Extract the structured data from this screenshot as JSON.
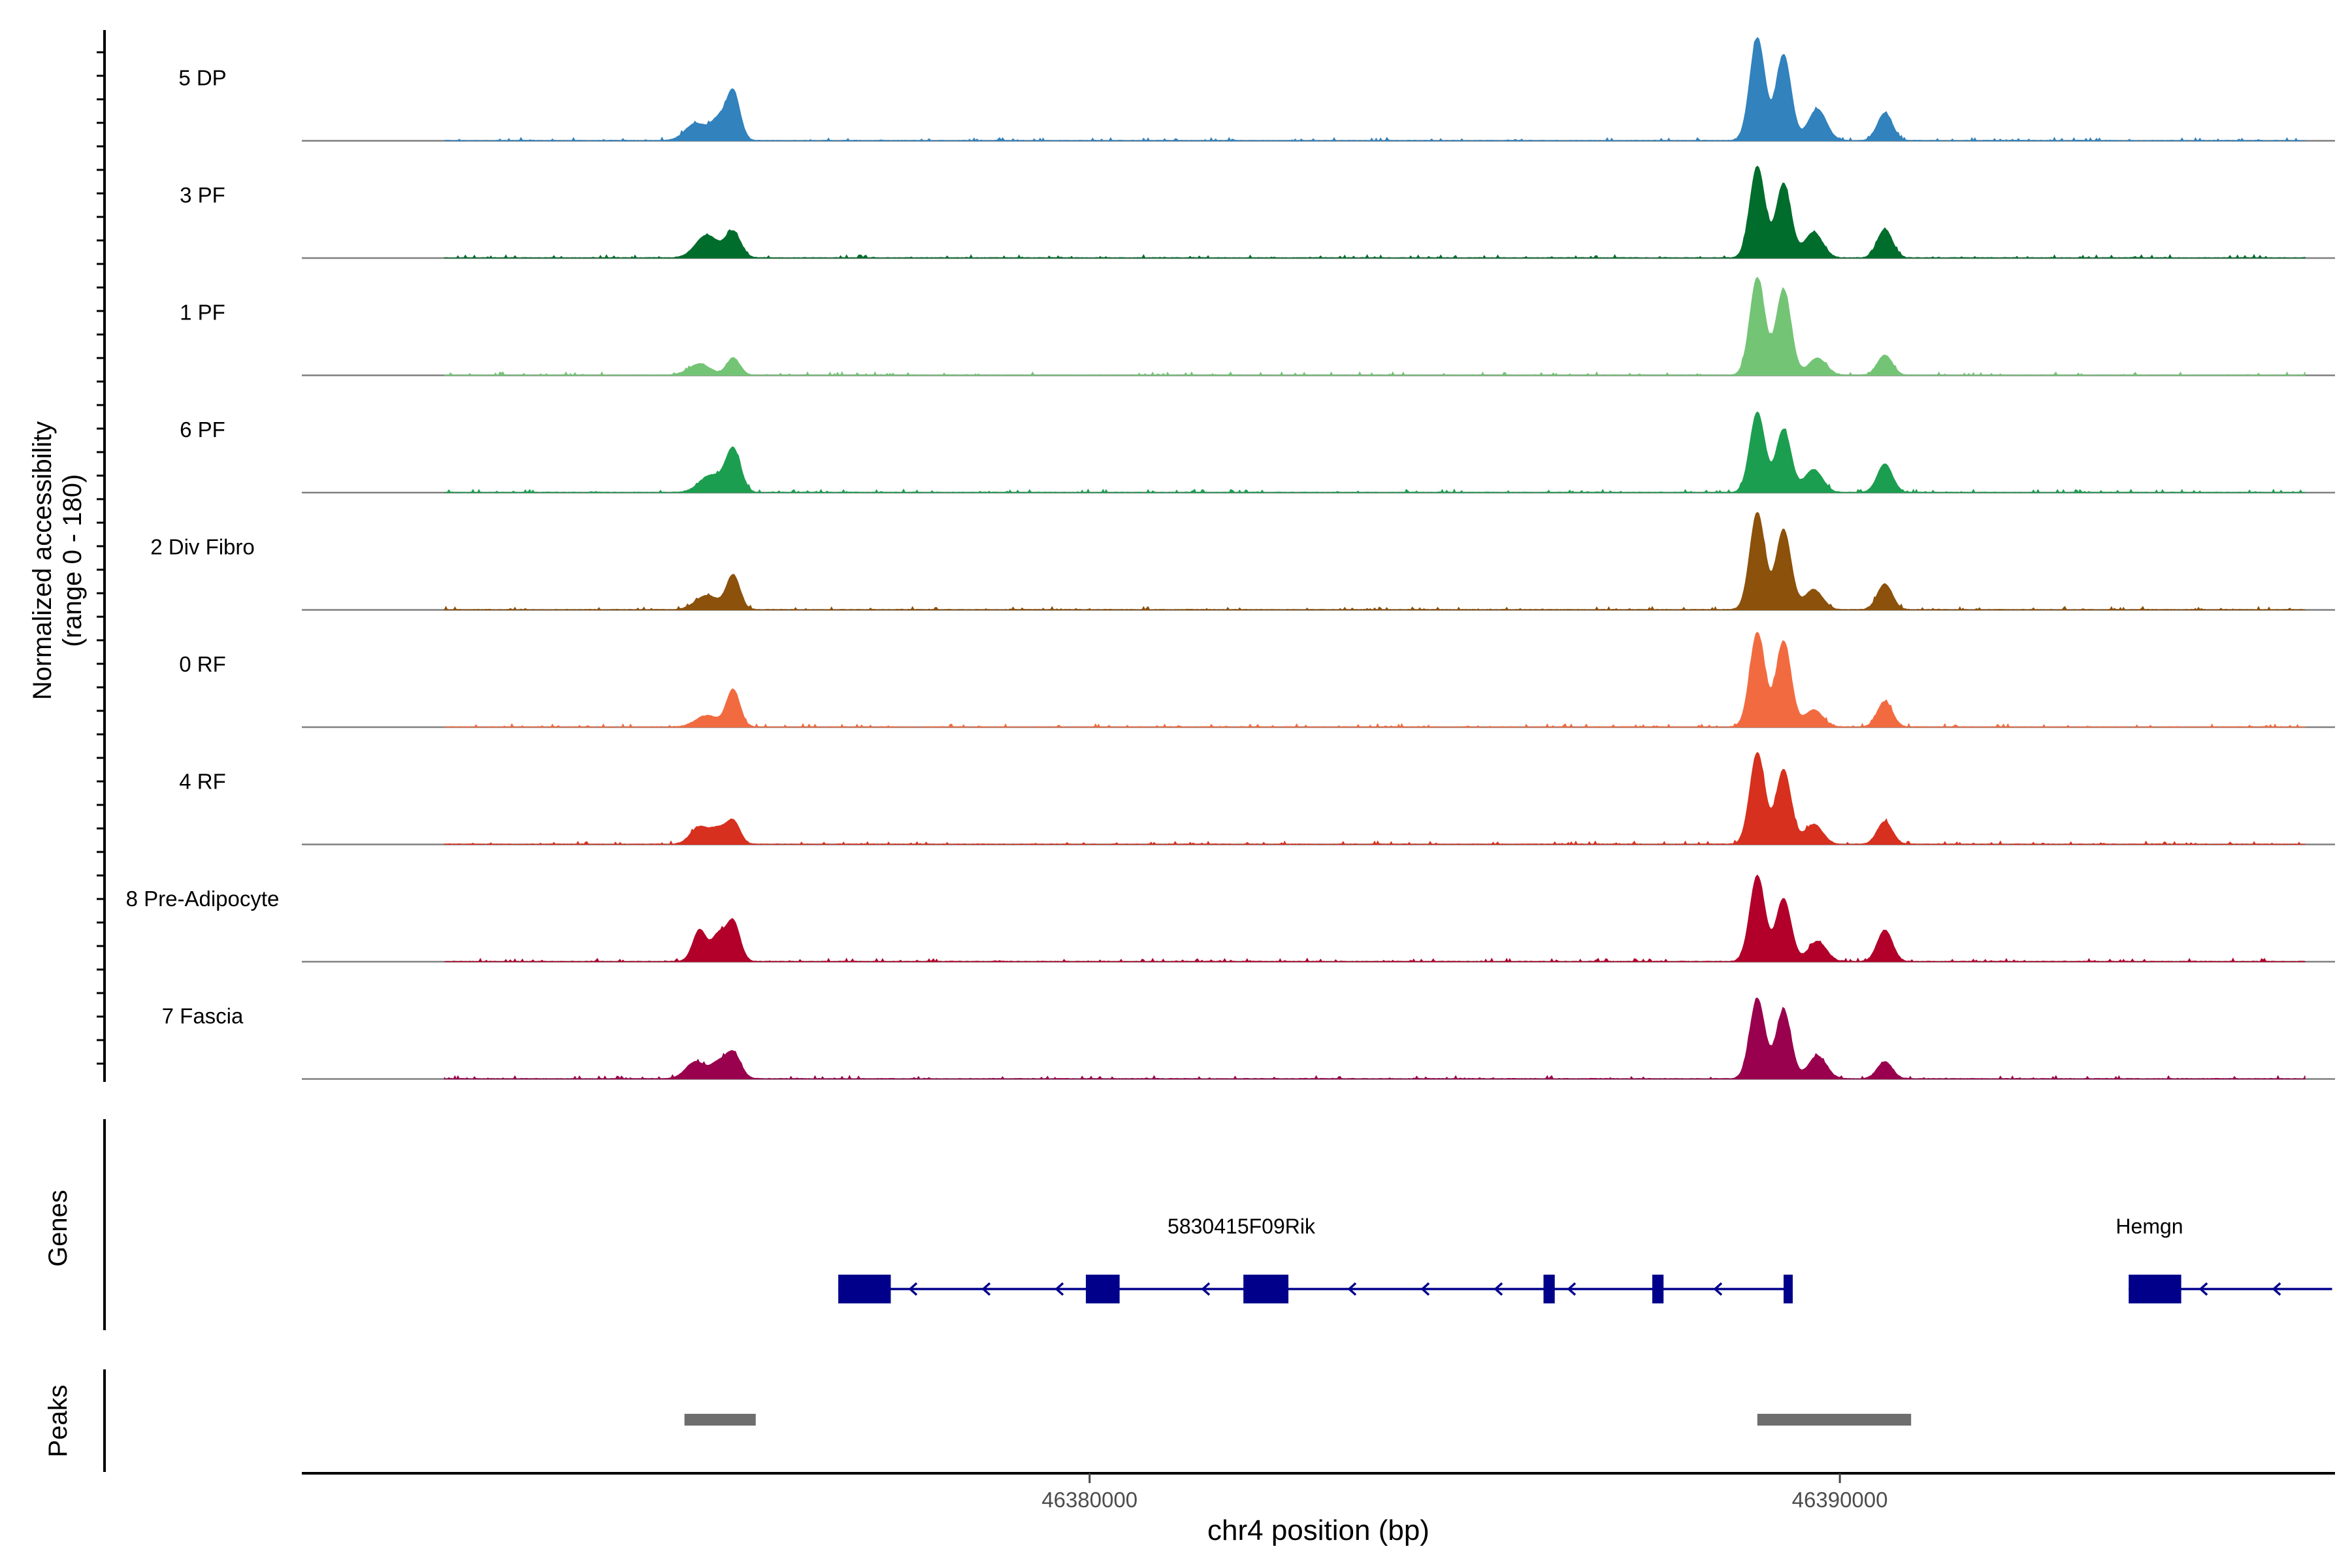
{
  "chart_data": {
    "type": "area",
    "title": "",
    "ylabel_tracks": "Normalized accessibility",
    "ylabel_tracks_range": "(range 0 - 180)",
    "xlabel": "chr4 position (bp)",
    "xlim": [
      46369500,
      46396600
    ],
    "ylim": [
      0,
      180
    ],
    "x_ticks": [
      46380000,
      46390000
    ],
    "x_tick_labels": [
      "46380000",
      "46390000"
    ],
    "tracks": [
      {
        "name": "5 DP",
        "color": "#3182bd",
        "peaks": [
          [
            46374750,
            30,
            140
          ],
          [
            46375050,
            35,
            100
          ],
          [
            46375250,
            85,
            90
          ],
          [
            46388900,
            180,
            100
          ],
          [
            46389250,
            150,
            100
          ],
          [
            46389700,
            55,
            120
          ],
          [
            46390600,
            48,
            100
          ]
        ]
      },
      {
        "name": "3 PF",
        "color": "#006d2c",
        "peaks": [
          [
            46374900,
            40,
            150
          ],
          [
            46375250,
            45,
            100
          ],
          [
            46388900,
            160,
            100
          ],
          [
            46389250,
            130,
            100
          ],
          [
            46389650,
            45,
            120
          ],
          [
            46390600,
            50,
            100
          ]
        ]
      },
      {
        "name": "1 PF",
        "color": "#74c476",
        "peaks": [
          [
            46374800,
            20,
            140
          ],
          [
            46375250,
            30,
            90
          ],
          [
            46388900,
            170,
            100
          ],
          [
            46389250,
            150,
            100
          ],
          [
            46389700,
            30,
            120
          ],
          [
            46390600,
            35,
            100
          ]
        ]
      },
      {
        "name": "6 PF",
        "color": "#1c9e50",
        "peaks": [
          [
            46374950,
            30,
            150
          ],
          [
            46375250,
            75,
            100
          ],
          [
            46388900,
            140,
            100
          ],
          [
            46389250,
            110,
            100
          ],
          [
            46389650,
            40,
            120
          ],
          [
            46390600,
            50,
            100
          ]
        ]
      },
      {
        "name": "2 Div Fibro",
        "color": "#8c510a",
        "peaks": [
          [
            46374900,
            25,
            150
          ],
          [
            46375250,
            60,
            90
          ],
          [
            46388900,
            170,
            100
          ],
          [
            46389250,
            140,
            100
          ],
          [
            46389650,
            35,
            120
          ],
          [
            46390600,
            45,
            100
          ]
        ]
      },
      {
        "name": "0 RF",
        "color": "#f26b40",
        "peaks": [
          [
            46374900,
            20,
            150
          ],
          [
            46375250,
            65,
            90
          ],
          [
            46388900,
            165,
            100
          ],
          [
            46389250,
            150,
            100
          ],
          [
            46389650,
            30,
            120
          ],
          [
            46390600,
            45,
            100
          ]
        ]
      },
      {
        "name": "4 RF",
        "color": "#d7301f",
        "peaks": [
          [
            46374800,
            30,
            120
          ],
          [
            46375050,
            25,
            100
          ],
          [
            46375250,
            40,
            90
          ],
          [
            46388900,
            160,
            100
          ],
          [
            46389250,
            130,
            100
          ],
          [
            46389650,
            35,
            120
          ],
          [
            46390600,
            40,
            100
          ]
        ]
      },
      {
        "name": "8 Pre-Adipocyte",
        "color": "#b2002a",
        "peaks": [
          [
            46374800,
            55,
            90
          ],
          [
            46375050,
            45,
            90
          ],
          [
            46375250,
            70,
            90
          ],
          [
            46388900,
            150,
            100
          ],
          [
            46389250,
            110,
            100
          ],
          [
            46389700,
            35,
            120
          ],
          [
            46390600,
            55,
            100
          ]
        ]
      },
      {
        "name": "7 Fascia",
        "color": "#99004d",
        "peaks": [
          [
            46374750,
            30,
            130
          ],
          [
            46375050,
            25,
            100
          ],
          [
            46375250,
            45,
            100
          ],
          [
            46388900,
            140,
            100
          ],
          [
            46389250,
            120,
            100
          ],
          [
            46389700,
            40,
            120
          ],
          [
            46390600,
            30,
            100
          ]
        ]
      }
    ],
    "genes_label": "Genes",
    "genes": [
      {
        "name": "5830415F09Rik",
        "strand": "-",
        "start": 46376650,
        "end": 46389350,
        "exons": [
          [
            46376650,
            46377350
          ],
          [
            46379950,
            46380400
          ],
          [
            46382050,
            46382650
          ],
          [
            46386050,
            46386200
          ],
          [
            46387500,
            46387650
          ],
          [
            46389250,
            46389350
          ]
        ]
      },
      {
        "name": "Hemgn",
        "strand": "-",
        "start": 46393850,
        "end": 46396300,
        "exons": [
          [
            46393850,
            46394550
          ]
        ]
      }
    ],
    "peaks_label": "Peaks",
    "peaks": [
      [
        46374600,
        46375550
      ],
      [
        46388900,
        46390950
      ]
    ]
  }
}
